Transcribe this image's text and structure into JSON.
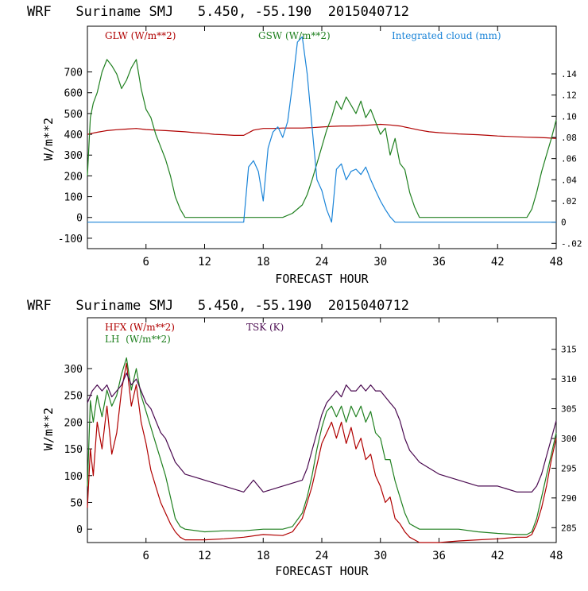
{
  "charts": [
    {
      "title": "WRF   Suriname SMJ   5.450, -55.190  2015040712",
      "legend": [
        {
          "label": "GLW (W/m**2)",
          "color": "#b00000"
        },
        {
          "label": "GSW (W/m**2)",
          "color": "#208020"
        },
        {
          "label": "Integrated cloud (mm)",
          "color": "#1a84d8"
        }
      ]
    },
    {
      "title": "WRF   Suriname SMJ   5.450, -55.190  2015040712",
      "legend": [
        {
          "label": "HFX (W/m**2)",
          "color": "#b00000"
        },
        {
          "label": "LH  (W/m**2)",
          "color": "#208020"
        },
        {
          "label": "TSK (K)",
          "color": "#4a0a50"
        }
      ]
    }
  ],
  "chart_data": [
    {
      "type": "line",
      "title": "WRF   Suriname SMJ   5.450, -55.190  2015040712",
      "xlabel": "FORECAST HOUR",
      "ylabel": "W/m**2",
      "xlim": [
        0,
        48
      ],
      "ylim": [
        -150,
        920
      ],
      "y2lim": [
        -0.025,
        0.185
      ],
      "xticks": [
        6,
        12,
        18,
        24,
        30,
        36,
        42,
        48
      ],
      "yticks": [
        -100,
        0,
        100,
        200,
        300,
        400,
        500,
        600,
        700
      ],
      "y2ticks": [
        -0.02,
        0,
        0.02,
        0.04,
        0.06,
        0.08,
        0.1,
        0.12,
        0.14
      ],
      "y2ticklabels": [
        "-.02",
        "0",
        ".02",
        ".04",
        ".06",
        ".08",
        ".10",
        ".12",
        ".14"
      ],
      "xticklabels": [
        "6",
        "12",
        "18",
        "24",
        "30",
        "36",
        "42",
        "48"
      ],
      "yticklabels": [
        "-100",
        "0",
        "100",
        "200",
        "300",
        "400",
        "500",
        "600",
        "700"
      ],
      "series": [
        {
          "name": "GLW (W/m**2)",
          "axis": "left",
          "color": "#b00000",
          "x": [
            0,
            1,
            2,
            3,
            4,
            5,
            6,
            7,
            8,
            9,
            10,
            11,
            12,
            13,
            14,
            15,
            16,
            17,
            18,
            19,
            20,
            21,
            22,
            23,
            24,
            25,
            26,
            27,
            28,
            29,
            30,
            31,
            32,
            33,
            34,
            35,
            36,
            37,
            38,
            39,
            40,
            41,
            42,
            43,
            44,
            45,
            46,
            47,
            48
          ],
          "y": [
            400,
            410,
            418,
            422,
            425,
            428,
            423,
            420,
            418,
            415,
            412,
            408,
            405,
            400,
            398,
            395,
            395,
            420,
            428,
            428,
            430,
            430,
            430,
            432,
            435,
            438,
            440,
            440,
            442,
            445,
            448,
            445,
            440,
            430,
            420,
            412,
            408,
            405,
            402,
            400,
            398,
            395,
            392,
            390,
            388,
            386,
            385,
            383,
            380
          ]
        },
        {
          "name": "GSW (W/m**2)",
          "axis": "left",
          "color": "#208020",
          "x": [
            0,
            0.3,
            0.6,
            1,
            1.5,
            2,
            2.5,
            3,
            3.5,
            4,
            4.5,
            5,
            5.5,
            6,
            6.5,
            7,
            7.5,
            8,
            8.5,
            9,
            9.5,
            10,
            20,
            21,
            22,
            22.5,
            23,
            23.5,
            24,
            24.5,
            25,
            25.5,
            26,
            26.5,
            27,
            27.5,
            28,
            28.5,
            29,
            29.5,
            30,
            30.5,
            31,
            31.5,
            32,
            32.5,
            33,
            33.5,
            34,
            45,
            45.5,
            46,
            46.5,
            47,
            47.5,
            48
          ],
          "y": [
            200,
            480,
            550,
            600,
            700,
            760,
            730,
            690,
            620,
            660,
            720,
            760,
            620,
            520,
            480,
            400,
            340,
            280,
            200,
            100,
            40,
            0,
            0,
            20,
            60,
            110,
            180,
            260,
            340,
            420,
            480,
            560,
            520,
            580,
            540,
            500,
            560,
            480,
            520,
            460,
            400,
            430,
            300,
            380,
            260,
            230,
            120,
            50,
            0,
            0,
            40,
            120,
            220,
            300,
            380,
            470
          ]
        },
        {
          "name": "Integrated cloud (mm)",
          "axis": "right",
          "color": "#1a84d8",
          "x": [
            0,
            16,
            16.5,
            17,
            17.5,
            18,
            18.5,
            19,
            19.5,
            20,
            20.5,
            21,
            21.5,
            22,
            22.5,
            23,
            23.5,
            24,
            24.5,
            25,
            25.5,
            26,
            26.5,
            27,
            27.5,
            28,
            28.5,
            29,
            29.5,
            30,
            30.5,
            31,
            31.5,
            48
          ],
          "y": [
            0,
            0,
            0.052,
            0.058,
            0.048,
            0.02,
            0.07,
            0.085,
            0.09,
            0.08,
            0.095,
            0.13,
            0.17,
            0.175,
            0.14,
            0.09,
            0.04,
            0.03,
            0.012,
            0.0,
            0.05,
            0.055,
            0.04,
            0.048,
            0.05,
            0.045,
            0.052,
            0.04,
            0.03,
            0.02,
            0.012,
            0.005,
            0,
            0
          ]
        }
      ]
    },
    {
      "type": "line",
      "title": "WRF   Suriname SMJ   5.450, -55.190  2015040712",
      "xlabel": "FORECAST HOUR",
      "ylabel": "W/m**2",
      "xlim": [
        0,
        48
      ],
      "ylim": [
        -25,
        395
      ],
      "y2lim": [
        282.5,
        320.3
      ],
      "xticks": [
        6,
        12,
        18,
        24,
        30,
        36,
        42,
        48
      ],
      "yticks": [
        0,
        50,
        100,
        150,
        200,
        250,
        300
      ],
      "y2ticks": [
        285,
        290,
        295,
        300,
        305,
        310,
        315
      ],
      "xticklabels": [
        "6",
        "12",
        "18",
        "24",
        "30",
        "36",
        "42",
        "48"
      ],
      "yticklabels": [
        "0",
        "50",
        "100",
        "150",
        "200",
        "250",
        "300"
      ],
      "y2ticklabels": [
        "285",
        "290",
        "295",
        "300",
        "305",
        "310",
        "315"
      ],
      "series": [
        {
          "name": "HFX (W/m**2)",
          "axis": "left",
          "color": "#b00000",
          "x": [
            0,
            0.3,
            0.6,
            1,
            1.5,
            2,
            2.5,
            3,
            3.5,
            4,
            4.5,
            5,
            5.5,
            6,
            6.5,
            7,
            7.5,
            8,
            8.5,
            9,
            9.5,
            10,
            12,
            14,
            16,
            18,
            20,
            21,
            22,
            22.5,
            23,
            23.5,
            24,
            24.5,
            25,
            25.5,
            26,
            26.5,
            27,
            27.5,
            28,
            28.5,
            29,
            29.5,
            30,
            30.5,
            31,
            31.5,
            32,
            32.5,
            33,
            34,
            36,
            38,
            40,
            42,
            44,
            45,
            45.5,
            46,
            46.5,
            47,
            47.5,
            48
          ],
          "y": [
            40,
            150,
            100,
            200,
            150,
            230,
            140,
            180,
            260,
            310,
            230,
            270,
            200,
            160,
            110,
            80,
            50,
            30,
            10,
            -5,
            -15,
            -20,
            -20,
            -18,
            -15,
            -10,
            -12,
            -5,
            20,
            50,
            80,
            120,
            160,
            180,
            200,
            170,
            200,
            160,
            190,
            150,
            170,
            130,
            140,
            100,
            80,
            50,
            60,
            20,
            10,
            -5,
            -15,
            -25,
            -25,
            -22,
            -20,
            -18,
            -15,
            -15,
            -10,
            10,
            40,
            80,
            130,
            170
          ]
        },
        {
          "name": "LH  (W/m**2)",
          "axis": "left",
          "color": "#208020",
          "x": [
            0,
            0.3,
            0.6,
            1,
            1.5,
            2,
            2.5,
            3,
            3.5,
            4,
            4.5,
            5,
            5.5,
            6,
            6.5,
            7,
            7.5,
            8,
            8.5,
            9,
            9.5,
            10,
            12,
            14,
            16,
            18,
            20,
            21,
            22,
            22.5,
            23,
            23.5,
            24,
            24.5,
            25,
            25.5,
            26,
            26.5,
            27,
            27.5,
            28,
            28.5,
            29,
            29.5,
            30,
            30.5,
            31,
            31.5,
            32,
            32.5,
            33,
            33.5,
            34,
            36,
            38,
            40,
            42,
            44,
            45,
            45.5,
            46,
            46.5,
            47,
            47.5,
            48
          ],
          "y": [
            80,
            240,
            200,
            250,
            210,
            260,
            230,
            250,
            290,
            320,
            260,
            300,
            250,
            220,
            190,
            160,
            130,
            100,
            60,
            20,
            5,
            0,
            -5,
            -3,
            -3,
            0,
            0,
            5,
            30,
            60,
            100,
            150,
            190,
            220,
            230,
            210,
            230,
            200,
            230,
            210,
            230,
            200,
            220,
            180,
            170,
            130,
            130,
            90,
            60,
            30,
            10,
            5,
            0,
            0,
            0,
            -5,
            -8,
            -10,
            -10,
            -5,
            20,
            60,
            100,
            140,
            180
          ]
        },
        {
          "name": "TSK (K)",
          "axis": "right",
          "color": "#4a0a50",
          "x": [
            0,
            0.5,
            1,
            1.5,
            2,
            2.5,
            3,
            3.5,
            4,
            4.5,
            5,
            5.5,
            6,
            6.5,
            7,
            7.5,
            8,
            8.5,
            9,
            9.5,
            10,
            12,
            14,
            16,
            17,
            18,
            20,
            22,
            22.5,
            23,
            23.5,
            24,
            24.5,
            25,
            25.5,
            26,
            26.5,
            27,
            27.5,
            28,
            28.5,
            29,
            29.5,
            30,
            30.5,
            31,
            31.5,
            32,
            32.5,
            33,
            33.5,
            34,
            36,
            38,
            40,
            42,
            44,
            45,
            45.5,
            46,
            46.5,
            47,
            47.5,
            48
          ],
          "y": [
            306,
            308,
            309,
            308,
            309,
            307,
            308,
            309,
            311,
            309,
            310,
            308,
            306,
            305,
            303,
            301,
            300,
            298,
            296,
            295,
            294,
            293,
            292,
            291,
            293,
            291,
            292,
            293,
            295,
            298,
            301,
            304,
            306,
            307,
            308,
            307,
            309,
            308,
            308,
            309,
            308,
            309,
            308,
            308,
            307,
            306,
            305,
            303,
            300,
            298,
            297,
            296,
            294,
            293,
            292,
            292,
            291,
            291,
            291,
            292,
            294,
            297,
            300,
            303
          ]
        }
      ]
    }
  ]
}
